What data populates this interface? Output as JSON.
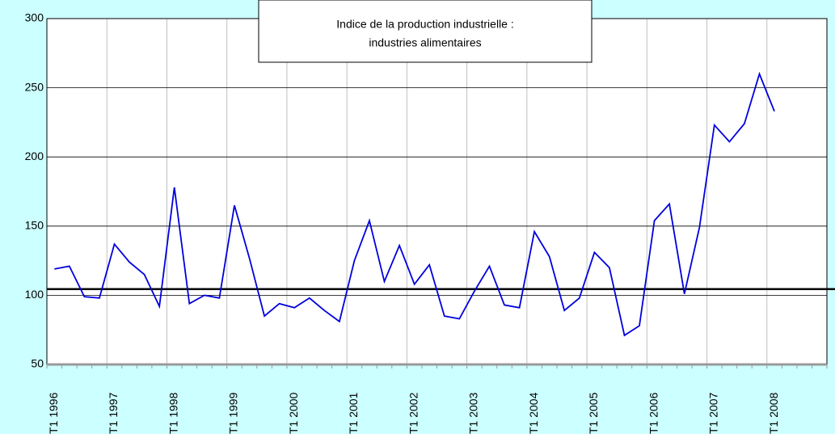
{
  "chart_data": {
    "type": "line",
    "title": [
      "Indice de la production industrielle :",
      "industries alimentaires"
    ],
    "categories": [
      "T1 1996",
      null,
      null,
      null,
      "T1 1997",
      null,
      null,
      null,
      "T1 1998",
      null,
      null,
      null,
      "T1 1999",
      null,
      null,
      null,
      "T1 2000",
      null,
      null,
      null,
      "T1 2001",
      null,
      null,
      null,
      "T1 2002",
      null,
      null,
      null,
      "T1 2003",
      null,
      null,
      null,
      "T1 2004",
      null,
      null,
      null,
      "T1 2005",
      null,
      null,
      null,
      "T1 2006",
      null,
      null,
      null,
      "T1 2007",
      null,
      null,
      null,
      "T1 2008"
    ],
    "values": [
      119,
      121,
      99,
      98,
      137,
      124,
      115,
      92,
      178,
      94,
      100,
      98,
      165,
      127,
      85,
      94,
      91,
      98,
      89,
      81,
      125,
      154,
      110,
      136,
      108,
      122,
      85,
      83,
      103,
      121,
      93,
      91,
      146,
      128,
      89,
      98,
      131,
      120,
      71,
      78,
      154,
      166,
      101,
      149,
      223,
      211,
      224,
      260,
      233
    ],
    "color": "#0000dd",
    "reference_line": 104.5,
    "ylim": [
      50,
      300
    ],
    "yticks": [
      50,
      100,
      150,
      200,
      250,
      300
    ],
    "grid": true
  }
}
